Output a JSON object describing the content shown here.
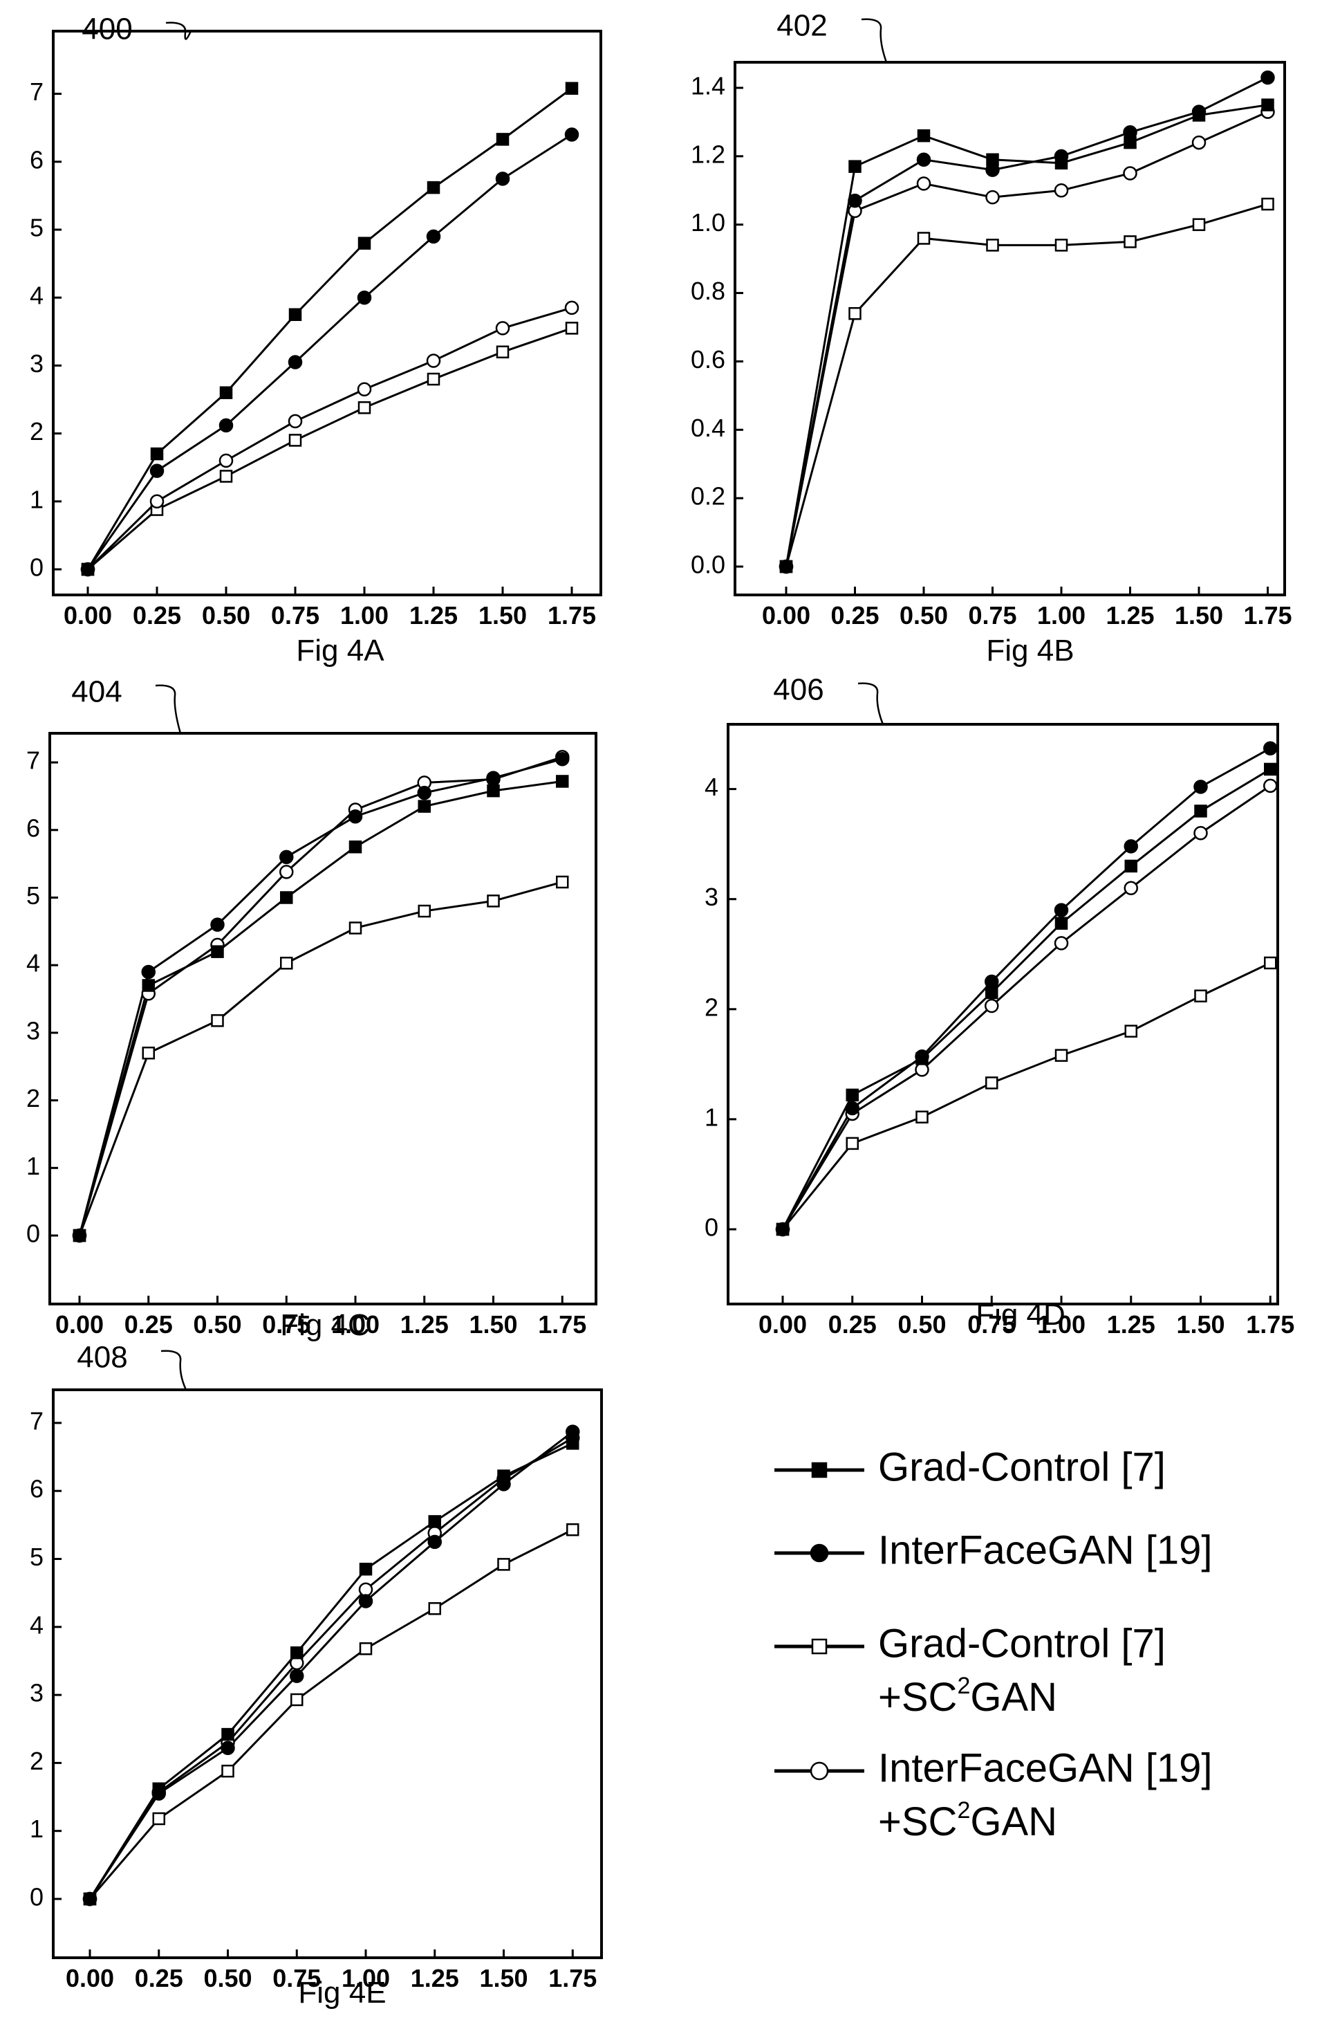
{
  "legend": [
    {
      "name": "Grad-Control [7]",
      "line2": "",
      "marker": "square",
      "fill": "#000000"
    },
    {
      "name": "InterFaceGAN [19]",
      "line2": "",
      "marker": "circle",
      "fill": "#000000"
    },
    {
      "name": "Grad-Control [7]",
      "line2": "+SC²GAN",
      "marker": "square",
      "fill": "#ffffff"
    },
    {
      "name": "InterFaceGAN [19]",
      "line2": "+SC²GAN",
      "marker": "circle",
      "fill": "#ffffff"
    }
  ],
  "chart_data": [
    {
      "type": "line",
      "ref": "400",
      "caption": "Fig 4A",
      "x": [
        0.0,
        0.25,
        0.5,
        0.75,
        1.0,
        1.25,
        1.5,
        1.75
      ],
      "x_tick_labels": [
        "0.00",
        "0.25",
        "0.50",
        "0.75",
        "1.00",
        "1.25",
        "1.50",
        "1.75"
      ],
      "ylim": [
        0,
        7
      ],
      "y_ticks": [
        0,
        1,
        2,
        3,
        4,
        5,
        6,
        7
      ],
      "y_tick_labels": [
        "0",
        "1",
        "2",
        "3",
        "4",
        "5",
        "6",
        "7"
      ],
      "series": [
        {
          "marker": "square",
          "fill": "#000000",
          "values": [
            0,
            1.7,
            2.6,
            3.75,
            4.8,
            5.62,
            6.33,
            7.08
          ]
        },
        {
          "marker": "circle",
          "fill": "#000000",
          "values": [
            0,
            1.45,
            2.12,
            3.05,
            4.0,
            4.9,
            5.75,
            6.4
          ]
        },
        {
          "marker": "square",
          "fill": "#ffffff",
          "values": [
            0,
            0.88,
            1.37,
            1.9,
            2.38,
            2.8,
            3.2,
            3.55
          ]
        },
        {
          "marker": "circle",
          "fill": "#ffffff",
          "values": [
            0,
            1.0,
            1.6,
            2.18,
            2.65,
            3.07,
            3.55,
            3.85
          ]
        }
      ]
    },
    {
      "type": "line",
      "ref": "402",
      "caption": "Fig 4B",
      "x": [
        0.0,
        0.25,
        0.5,
        0.75,
        1.0,
        1.25,
        1.5,
        1.75
      ],
      "x_tick_labels": [
        "0.00",
        "0.25",
        "0.50",
        "0.75",
        "1.00",
        "1.25",
        "1.50",
        "1.75"
      ],
      "ylim": [
        0,
        1.4
      ],
      "y_ticks": [
        0,
        0.2,
        0.4,
        0.6,
        0.8,
        1.0,
        1.2,
        1.4
      ],
      "y_tick_labels": [
        "0.0",
        "0.2",
        "0.4",
        "0.6",
        "0.8",
        "1.0",
        "1.2",
        "1.4"
      ],
      "series": [
        {
          "marker": "square",
          "fill": "#000000",
          "values": [
            0,
            1.17,
            1.26,
            1.19,
            1.18,
            1.24,
            1.32,
            1.35
          ]
        },
        {
          "marker": "circle",
          "fill": "#000000",
          "values": [
            0,
            1.07,
            1.19,
            1.16,
            1.2,
            1.27,
            1.33,
            1.43
          ]
        },
        {
          "marker": "square",
          "fill": "#ffffff",
          "values": [
            0,
            0.74,
            0.96,
            0.94,
            0.94,
            0.95,
            1.0,
            1.06
          ]
        },
        {
          "marker": "circle",
          "fill": "#ffffff",
          "values": [
            0,
            1.04,
            1.12,
            1.08,
            1.1,
            1.15,
            1.24,
            1.33
          ]
        }
      ]
    },
    {
      "type": "line",
      "ref": "404",
      "caption": "Fig 4C",
      "x": [
        0.0,
        0.25,
        0.5,
        0.75,
        1.0,
        1.25,
        1.5,
        1.75
      ],
      "x_tick_labels": [
        "0.00",
        "0.25",
        "0.50",
        "0.75",
        "1.00",
        "1.25",
        "1.50",
        "1.75"
      ],
      "ylim": [
        0,
        7
      ],
      "y_ticks": [
        0,
        1,
        2,
        3,
        4,
        5,
        6,
        7
      ],
      "y_tick_labels": [
        "0",
        "1",
        "2",
        "3",
        "4",
        "5",
        "6",
        "7"
      ],
      "series": [
        {
          "marker": "square",
          "fill": "#000000",
          "values": [
            0,
            3.7,
            4.2,
            5.0,
            5.75,
            6.35,
            6.58,
            6.72
          ]
        },
        {
          "marker": "circle",
          "fill": "#000000",
          "values": [
            0,
            3.9,
            4.6,
            5.6,
            6.2,
            6.55,
            6.77,
            7.05
          ]
        },
        {
          "marker": "square",
          "fill": "#ffffff",
          "values": [
            0,
            2.7,
            3.18,
            4.03,
            4.55,
            4.8,
            4.95,
            5.23
          ]
        },
        {
          "marker": "circle",
          "fill": "#ffffff",
          "values": [
            0,
            3.58,
            4.3,
            5.38,
            6.3,
            6.7,
            6.75,
            7.08
          ]
        }
      ]
    },
    {
      "type": "line",
      "ref": "406",
      "caption": "Fig 4D",
      "x": [
        0.0,
        0.25,
        0.5,
        0.75,
        1.0,
        1.25,
        1.5,
        1.75
      ],
      "x_tick_labels": [
        "0.00",
        "0.25",
        "0.50",
        "0.75",
        "1.00",
        "1.25",
        "1.50",
        "1.75"
      ],
      "ylim": [
        0,
        4.4
      ],
      "y_ticks": [
        0,
        1,
        2,
        3,
        4
      ],
      "y_tick_labels": [
        "0",
        "1",
        "2",
        "3",
        "4"
      ],
      "series": [
        {
          "marker": "square",
          "fill": "#000000",
          "values": [
            0,
            1.22,
            1.55,
            2.15,
            2.78,
            3.3,
            3.8,
            4.18
          ]
        },
        {
          "marker": "circle",
          "fill": "#000000",
          "values": [
            0,
            1.1,
            1.57,
            2.25,
            2.9,
            3.48,
            4.02,
            4.37
          ]
        },
        {
          "marker": "square",
          "fill": "#ffffff",
          "values": [
            0,
            0.78,
            1.02,
            1.33,
            1.58,
            1.8,
            2.12,
            2.42
          ]
        },
        {
          "marker": "circle",
          "fill": "#ffffff",
          "values": [
            0,
            1.05,
            1.45,
            2.03,
            2.6,
            3.1,
            3.6,
            4.03
          ]
        }
      ]
    },
    {
      "type": "line",
      "ref": "408",
      "caption": "Fig 4E",
      "x": [
        0.0,
        0.25,
        0.5,
        0.75,
        1.0,
        1.25,
        1.5,
        1.75
      ],
      "x_tick_labels": [
        "0.00",
        "0.25",
        "0.50",
        "0.75",
        "1.00",
        "1.25",
        "1.50",
        "1.75"
      ],
      "ylim": [
        0,
        7
      ],
      "y_ticks": [
        0,
        1,
        2,
        3,
        4,
        5,
        6,
        7
      ],
      "y_tick_labels": [
        "0",
        "1",
        "2",
        "3",
        "4",
        "5",
        "6",
        "7"
      ],
      "series": [
        {
          "marker": "square",
          "fill": "#000000",
          "values": [
            0,
            1.62,
            2.42,
            3.62,
            4.85,
            5.55,
            6.22,
            6.7
          ]
        },
        {
          "marker": "circle",
          "fill": "#000000",
          "values": [
            0,
            1.55,
            2.22,
            3.28,
            4.38,
            5.25,
            6.1,
            6.87
          ]
        },
        {
          "marker": "square",
          "fill": "#ffffff",
          "values": [
            0,
            1.18,
            1.88,
            2.93,
            3.68,
            4.27,
            4.92,
            5.43
          ]
        },
        {
          "marker": "circle",
          "fill": "#ffffff",
          "values": [
            0,
            1.57,
            2.3,
            3.47,
            4.55,
            5.38,
            6.18,
            6.78
          ]
        }
      ]
    }
  ]
}
